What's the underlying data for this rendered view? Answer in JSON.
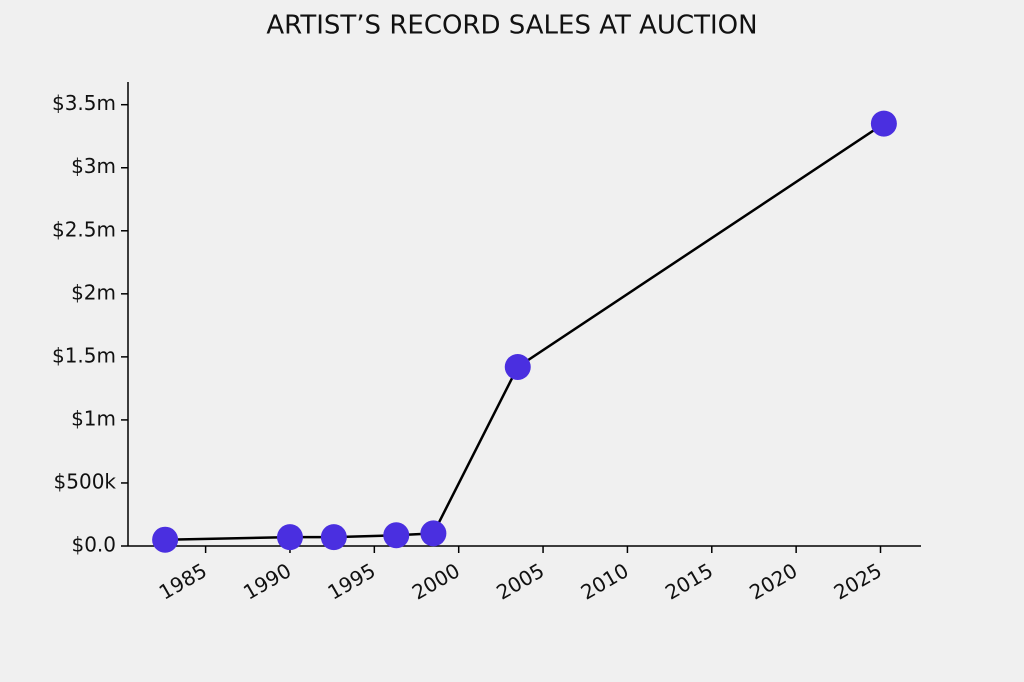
{
  "chart_data": {
    "type": "line",
    "title": "ARTIST’S RECORD SALES AT AUCTION",
    "x": [
      1982.6,
      1990.0,
      1992.6,
      1996.3,
      1998.5,
      2003.5,
      2025.2
    ],
    "series": [
      {
        "color": "#4a2fe0",
        "values": [
          50000,
          70000,
          70000,
          85000,
          100000,
          1420000,
          3350000
        ]
      }
    ],
    "xlim": [
      1980.4,
      2027.4
    ],
    "xticks": [
      1985,
      1990,
      1995,
      2000,
      2005,
      2010,
      2015,
      2020,
      2025
    ],
    "ylim": [
      0,
      3680000
    ],
    "yticks": [
      {
        "value": 0,
        "label": "$0.0"
      },
      {
        "value": 500000,
        "label": "$500k"
      },
      {
        "value": 1000000,
        "label": "$1m"
      },
      {
        "value": 1500000,
        "label": "$1.5m"
      },
      {
        "value": 2000000,
        "label": "$2m"
      },
      {
        "value": 2500000,
        "label": "$2.5m"
      },
      {
        "value": 3000000,
        "label": "$3m"
      },
      {
        "value": 3500000,
        "label": "$3.5m"
      }
    ]
  }
}
